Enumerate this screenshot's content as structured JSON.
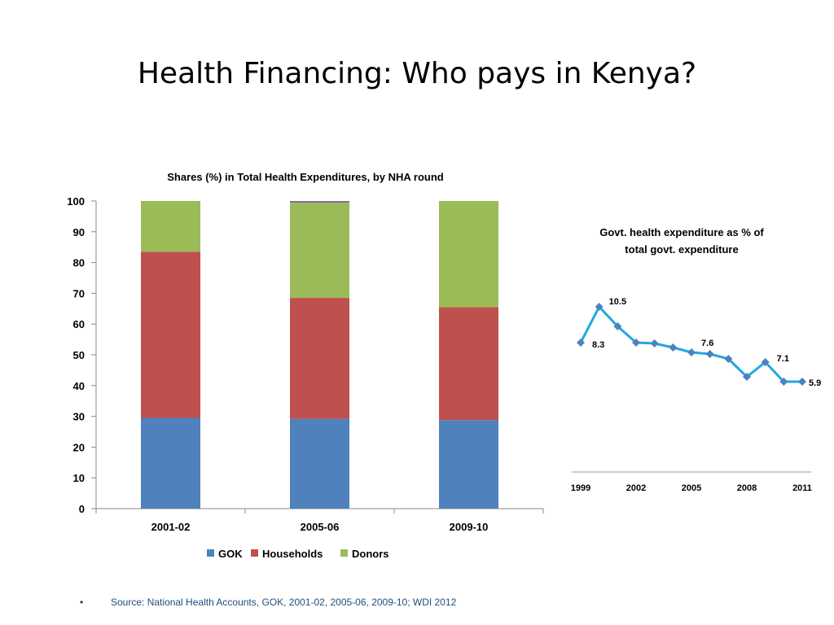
{
  "slide": {
    "title": "Health Financing: Who pays in Kenya?",
    "source": "Source: National Health Accounts, GOK, 2001-02, 2005-06, 2009-10; WDI 2012",
    "bullet": "•"
  },
  "chart_data": [
    {
      "type": "bar",
      "stacked": true,
      "title": "Shares (%) in Total Health Expenditures, by NHA round",
      "categories": [
        "2001-02",
        "2005-06",
        "2009-10"
      ],
      "series": [
        {
          "name": "GOK",
          "color": "#4f81bd",
          "values": [
            29.5,
            29.2,
            28.8
          ]
        },
        {
          "name": "Households",
          "color": "#c0504d",
          "values": [
            54.0,
            39.3,
            36.7
          ]
        },
        {
          "name": "Donors",
          "color": "#9bbb59",
          "values": [
            16.5,
            31.0,
            34.5
          ]
        },
        {
          "color": "#8064a2",
          "values": [
            0,
            0.5,
            0
          ]
        }
      ],
      "ylim": [
        0,
        100
      ],
      "yticks": [
        "0",
        "10",
        "20",
        "30",
        "40",
        "50",
        "60",
        "70",
        "80",
        "90",
        "100"
      ],
      "legend": "bottom",
      "grid": false
    },
    {
      "type": "line",
      "title_lines": [
        "Govt. health expenditure as % of",
        "total govt. expenditure"
      ],
      "x": [
        1999,
        2000,
        2001,
        2002,
        2003,
        2004,
        2005,
        2006,
        2007,
        2008,
        2009,
        2010,
        2011
      ],
      "values": [
        8.3,
        10.5,
        9.3,
        8.3,
        8.25,
        8.0,
        7.7,
        7.6,
        7.3,
        6.2,
        7.1,
        5.9,
        5.9
      ],
      "xticks": [
        "1999",
        "2002",
        "2005",
        "2008",
        "2011"
      ],
      "data_labels": [
        {
          "index": 0,
          "text": "8.3"
        },
        {
          "index": 1,
          "text": "10.5"
        },
        {
          "index": 7,
          "text": "7.6"
        },
        {
          "index": 10,
          "text": "7.1"
        },
        {
          "index": 12,
          "text": "5.9"
        }
      ],
      "line_color": "#1fa9e1",
      "marker_color": "#4f81bd",
      "grid": false
    }
  ]
}
